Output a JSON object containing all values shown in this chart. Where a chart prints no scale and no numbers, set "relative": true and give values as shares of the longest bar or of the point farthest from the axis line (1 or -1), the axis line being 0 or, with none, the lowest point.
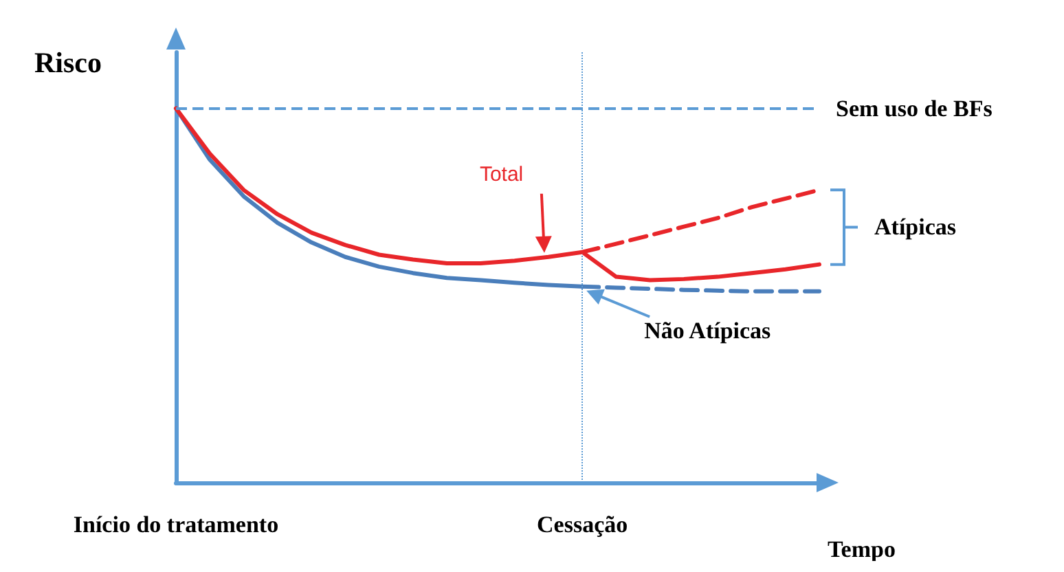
{
  "chart_data": {
    "type": "line",
    "relative": true,
    "title": "Risco",
    "xlabel": "Tempo",
    "legend": false,
    "marker": "none",
    "tick_labels": "x",
    "categories": [
      "Início do tratamento",
      null,
      null,
      null,
      null,
      null,
      null,
      null,
      null,
      null,
      null,
      null,
      "Cessação",
      null,
      null,
      null,
      null,
      null,
      null,
      null
    ],
    "series": [
      {
        "color": "#4a7ebb",
        "line_style": "solid",
        "values": [
          1.0,
          0.863,
          0.765,
          0.694,
          0.642,
          0.603,
          0.577,
          0.56,
          0.547,
          0.541,
          0.534,
          0.528,
          0.524,
          null,
          null,
          null,
          null,
          null,
          null,
          null
        ]
      },
      {
        "color": "#4a7ebb",
        "line_style": "dashed",
        "values": [
          null,
          null,
          null,
          null,
          null,
          null,
          null,
          null,
          null,
          null,
          null,
          null,
          0.524,
          0.521,
          0.518,
          0.515,
          0.513,
          0.511,
          0.511,
          0.511
        ]
      },
      {
        "name": "Total",
        "color": "#e8262a",
        "line_style": "solid",
        "values": [
          1.0,
          0.879,
          0.782,
          0.717,
          0.668,
          0.635,
          0.609,
          0.596,
          0.586,
          0.586,
          0.593,
          0.603,
          0.616,
          0.55,
          0.541,
          0.544,
          0.55,
          0.56,
          0.57,
          0.583
        ]
      },
      {
        "color": "#e8262a",
        "line_style": "dashed",
        "values": [
          null,
          null,
          null,
          null,
          null,
          null,
          null,
          null,
          null,
          null,
          null,
          null,
          0.616,
          0.638,
          0.661,
          0.684,
          0.707,
          0.736,
          0.759,
          0.782
        ]
      }
    ],
    "ref_lines": [
      {
        "axis": "y",
        "value": 1,
        "label": "Sem uso de BFs",
        "color": "#5b9bd5",
        "line_style": "dashed"
      },
      {
        "axis": "x",
        "value": "Cessação",
        "color": "#5b9bd5",
        "line_style": "dotted"
      }
    ],
    "annotations": [
      "Atípicas",
      {
        "text": "Não Atípicas",
        "x": "Cessação",
        "y": 0.524
      }
    ]
  }
}
